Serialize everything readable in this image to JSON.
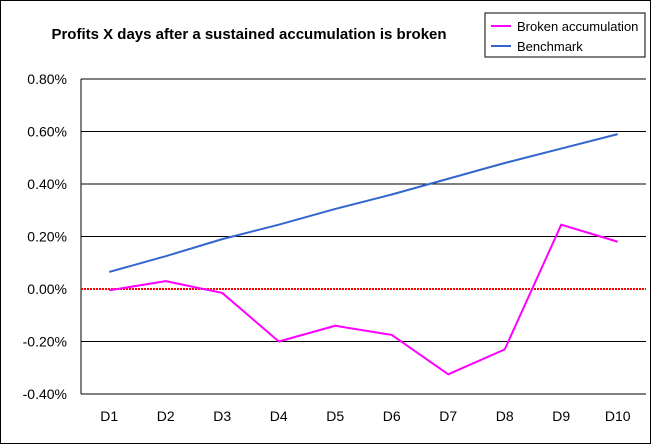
{
  "chart_data": {
    "type": "line",
    "title": "Profits X days after a sustained accumulation is broken",
    "xlabel": "",
    "ylabel": "",
    "categories": [
      "D1",
      "D2",
      "D3",
      "D4",
      "D5",
      "D6",
      "D7",
      "D8",
      "D9",
      "D10"
    ],
    "ylim": [
      -0.4,
      0.8
    ],
    "yticks": [
      0.8,
      0.6,
      0.4,
      0.2,
      0.0,
      -0.2,
      -0.4
    ],
    "ytick_labels": [
      "0.80%",
      "0.60%",
      "0.40%",
      "0.20%",
      "0.00%",
      "-0.20%",
      "-0.40%"
    ],
    "grid": true,
    "legend_position": "top-right",
    "series": [
      {
        "name": "Broken accumulation",
        "color": "#ff00ff",
        "values": [
          -0.005,
          0.03,
          -0.015,
          -0.2,
          -0.14,
          -0.175,
          -0.325,
          -0.23,
          0.245,
          0.18
        ]
      },
      {
        "name": "Benchmark",
        "color": "#3366cc",
        "values": [
          0.065,
          0.125,
          0.19,
          0.245,
          0.305,
          0.36,
          0.42,
          0.48,
          0.535,
          0.59
        ]
      }
    ],
    "zero_line_color": "#ff0000"
  }
}
